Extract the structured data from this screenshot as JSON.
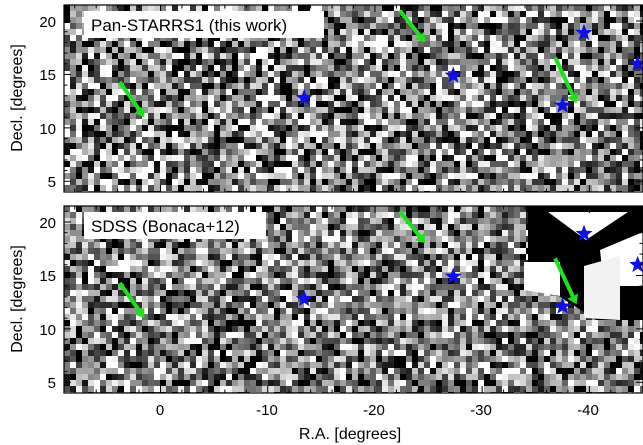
{
  "figure": {
    "panels": [
      {
        "id": "ps1",
        "label": "Pan-STARRS1 (this work)",
        "ylabel": "Decl. [degrees]",
        "yticks": [
          "5",
          "10",
          "15",
          "20"
        ],
        "has_sdss_mask": false
      },
      {
        "id": "sdss",
        "label": "SDSS (Bonaca+12)",
        "ylabel": "Decl. [degrees]",
        "yticks": [
          "5",
          "10",
          "15",
          "20"
        ],
        "has_sdss_mask": true
      }
    ],
    "xlabel": "R.A. [degrees]",
    "xticks": [
      "0",
      "-10",
      "-20",
      "-30",
      "-40"
    ],
    "xlim": [
      9,
      -45
    ],
    "ylim": [
      4,
      21.5
    ],
    "stars_radec": [
      [
        -13.4,
        12.8
      ],
      [
        -27.3,
        14.9
      ],
      [
        -37.5,
        12.1
      ],
      [
        -39.5,
        18.9
      ],
      [
        -44.5,
        16.0
      ]
    ],
    "arrows_radec": [
      [
        [
          3.8,
          14.3
        ],
        [
          1.5,
          11.0
        ]
      ],
      [
        [
          -22.3,
          21.0
        ],
        [
          -24.7,
          18.0
        ]
      ],
      [
        [
          -36.8,
          16.6
        ],
        [
          -38.8,
          12.3
        ]
      ]
    ],
    "colors": {
      "star": "#1010e0",
      "arrow": "#22dd22",
      "frame": "#000000",
      "label_box": "#ffffff"
    }
  }
}
